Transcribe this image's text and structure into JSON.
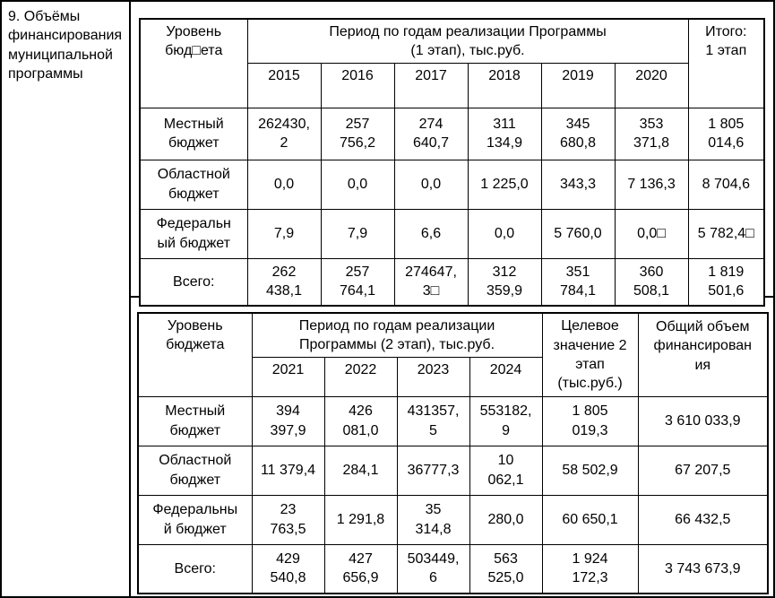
{
  "section": {
    "title": "9. Объёмы финансирования муниципальной программы"
  },
  "table1": {
    "header": {
      "level_label": "Уровень бюд□ета",
      "period_label": "Период по годам реализации Программы\n(1 этап), тыс.руб.",
      "total_label": "Итого:\n1 этап",
      "years": [
        "2015",
        "2016",
        "2017",
        "2018",
        "2019",
        "2020"
      ]
    },
    "rows": [
      {
        "label": "Местный бюджет",
        "values": [
          "262430,2",
          "257 756,2",
          "274 640,7",
          "311 134,9",
          "345 680,8",
          "353 371,8"
        ],
        "total": "1 805 014,6"
      },
      {
        "label": "Областной бюджет",
        "values": [
          "0,0",
          "0,0",
          "0,0",
          "1 225,0",
          "343,3",
          "7 136,3"
        ],
        "total": "8 704,6"
      },
      {
        "label": "Федеральный бюджет",
        "values": [
          "7,9",
          "7,9",
          "6,6",
          "0,0",
          "5 760,0",
          "0,0□"
        ],
        "total": "5 782,4□"
      },
      {
        "label": "Всего:",
        "values": [
          "262 438,1",
          "257 764,1",
          "274647,3□",
          "312 359,9",
          "351 784,1",
          "360 508,1"
        ],
        "total": "1 819 501,6"
      }
    ]
  },
  "table2": {
    "header": {
      "level_label": "Уровень бюджета",
      "period_label": "Период по годам реализации\nПрограммы (2 этап), тыс.руб.",
      "target_label": "Целевое значение 2 этап (тыс.руб.)",
      "grand_total_label": "Общий объем финансирования",
      "years": [
        "2021",
        "2022",
        "2023",
        "2024"
      ]
    },
    "rows": [
      {
        "label": "Местный бюджет",
        "values": [
          "394 397,9",
          "426 081,0",
          "431357,5",
          "553182,9"
        ],
        "target": "1 805 019,3",
        "total": "3 610 033,9"
      },
      {
        "label": "Областной бюджет",
        "values": [
          "11 379,4",
          "284,1",
          "36777,3",
          "10 062,1"
        ],
        "target": "58 502,9",
        "total": "67 207,5"
      },
      {
        "label": "Федеральный бюджет",
        "values": [
          "23 763,5",
          "1 291,8",
          "35 314,8",
          "280,0"
        ],
        "target": "60 650,1",
        "total": "66 432,5"
      },
      {
        "label": "Всего:",
        "values": [
          "429 540,8",
          "427 656,9",
          "503449,6",
          "563 525,0"
        ],
        "target": "1 924 172,3",
        "total": "3 743 673,9"
      }
    ]
  }
}
